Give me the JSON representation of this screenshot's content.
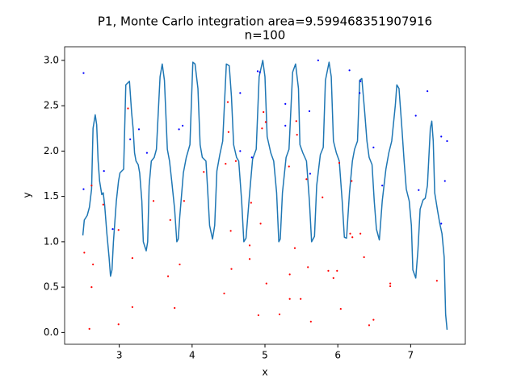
{
  "chart_data": {
    "type": "line",
    "title": "P1, Monte Carlo integration area=9.599468351907916",
    "subtitle": "n=100",
    "x_label": "x",
    "y_label": "y",
    "xlim": [
      2.25,
      7.75
    ],
    "ylim": [
      -0.13,
      3.15
    ],
    "xticks": [
      3,
      4,
      5,
      6,
      7
    ],
    "yticks": [
      {
        "value": 0,
        "label": "0.0"
      },
      {
        "value": 0.5,
        "label": "0.5"
      },
      {
        "value": 1,
        "label": "1.0"
      },
      {
        "value": 1.5,
        "label": "1.5"
      },
      {
        "value": 2,
        "label": "2.0"
      },
      {
        "value": 2.5,
        "label": "2.5"
      },
      {
        "value": 3,
        "label": "3.0"
      }
    ],
    "grid": false,
    "series": [
      {
        "type": "line",
        "color": "#1f77b4",
        "x": [
          2.5,
          2.52,
          2.56,
          2.59,
          2.62,
          2.64,
          2.67,
          2.69,
          2.71,
          2.73,
          2.76,
          2.78,
          2.8,
          2.83,
          2.86,
          2.88,
          2.9,
          2.92,
          2.96,
          2.99,
          3.01,
          3.06,
          3.09,
          3.14,
          3.17,
          3.19,
          3.21,
          3.23,
          3.26,
          3.28,
          3.31,
          3.33,
          3.37,
          3.39,
          3.41,
          3.44,
          3.48,
          3.51,
          3.56,
          3.59,
          3.62,
          3.66,
          3.69,
          3.72,
          3.76,
          3.79,
          3.81,
          3.83,
          3.88,
          3.92,
          3.97,
          4.01,
          4.04,
          4.08,
          4.11,
          4.14,
          4.19,
          4.21,
          4.24,
          4.28,
          4.31,
          4.34,
          4.38,
          4.42,
          4.47,
          4.51,
          4.54,
          4.57,
          4.61,
          4.64,
          4.68,
          4.71,
          4.74,
          4.79,
          4.83,
          4.88,
          4.92,
          4.97,
          5.0,
          5.03,
          5.08,
          5.12,
          5.16,
          5.19,
          5.21,
          5.24,
          5.29,
          5.33,
          5.38,
          5.42,
          5.46,
          5.48,
          5.52,
          5.57,
          5.61,
          5.64,
          5.68,
          5.71,
          5.76,
          5.8,
          5.83,
          5.88,
          5.91,
          5.94,
          5.98,
          6.02,
          6.06,
          6.09,
          6.12,
          6.16,
          6.2,
          6.23,
          6.27,
          6.3,
          6.33,
          6.37,
          6.4,
          6.43,
          6.47,
          6.5,
          6.53,
          6.57,
          6.61,
          6.66,
          6.7,
          6.74,
          6.79,
          6.81,
          6.84,
          6.88,
          6.91,
          6.94,
          6.98,
          7.01,
          7.03,
          7.07,
          7.1,
          7.13,
          7.17,
          7.2,
          7.23,
          7.27,
          7.29,
          7.31,
          7.33,
          7.37,
          7.4,
          7.43,
          7.46,
          7.48,
          7.5
        ],
        "values": [
          1.07,
          1.24,
          1.29,
          1.38,
          1.58,
          2.25,
          2.4,
          2.29,
          1.89,
          1.67,
          1.52,
          1.54,
          1.4,
          1.09,
          0.83,
          0.62,
          0.69,
          1.0,
          1.45,
          1.67,
          1.76,
          1.8,
          2.73,
          2.77,
          2.42,
          2.25,
          1.98,
          1.89,
          1.85,
          1.76,
          1.45,
          1.0,
          0.9,
          1.0,
          1.62,
          1.89,
          1.93,
          2.02,
          2.82,
          2.96,
          2.78,
          2.02,
          1.89,
          1.67,
          1.36,
          1.0,
          1.03,
          1.27,
          1.76,
          1.93,
          2.07,
          2.98,
          2.96,
          2.69,
          2.07,
          1.93,
          1.89,
          1.62,
          1.18,
          1.03,
          1.18,
          1.78,
          1.96,
          2.11,
          2.96,
          2.94,
          2.6,
          2.07,
          1.93,
          1.89,
          1.45,
          1.0,
          1.04,
          1.54,
          1.91,
          2.02,
          2.82,
          3.0,
          2.82,
          2.16,
          1.98,
          1.89,
          1.54,
          1.0,
          1.03,
          1.54,
          1.93,
          2.02,
          2.87,
          2.96,
          2.69,
          2.07,
          1.98,
          1.89,
          1.45,
          1.0,
          1.06,
          1.62,
          1.96,
          2.04,
          2.78,
          2.98,
          2.82,
          2.11,
          1.98,
          1.89,
          1.45,
          1.05,
          1.04,
          1.54,
          1.89,
          2.02,
          2.11,
          2.78,
          2.8,
          2.42,
          2.11,
          1.93,
          1.85,
          1.45,
          1.14,
          1.02,
          1.45,
          1.8,
          1.98,
          2.11,
          2.51,
          2.73,
          2.69,
          2.25,
          1.89,
          1.58,
          1.45,
          1.18,
          0.69,
          0.6,
          0.91,
          1.36,
          1.46,
          1.48,
          1.62,
          2.25,
          2.33,
          2.11,
          1.54,
          1.34,
          1.2,
          1.09,
          0.83,
          0.2,
          0.03
        ]
      },
      {
        "type": "scatter",
        "color": "blue",
        "x": [
          2.51,
          2.51,
          2.79,
          2.91,
          3.15,
          3.27,
          3.38,
          3.82,
          3.87,
          4.66,
          4.66,
          4.82,
          4.9,
          4.93,
          5.28,
          5.28,
          5.61,
          5.62,
          5.73,
          6.16,
          6.31,
          6.3,
          6.49,
          6.61,
          7.07,
          7.11,
          7.23,
          7.42,
          7.42,
          7.47,
          7.5
        ],
        "values": [
          2.86,
          1.58,
          1.78,
          1.14,
          2.13,
          2.24,
          1.98,
          2.24,
          2.28,
          2.0,
          2.64,
          1.93,
          2.88,
          2.87,
          2.52,
          2.28,
          2.44,
          1.75,
          3.0,
          2.89,
          2.77,
          2.64,
          2.04,
          1.62,
          2.39,
          1.57,
          2.66,
          2.16,
          1.2,
          1.67,
          2.11
        ]
      },
      {
        "type": "scatter",
        "color": "red",
        "x": [
          2.52,
          2.62,
          2.62,
          2.64,
          2.59,
          2.78,
          2.99,
          2.99,
          3.12,
          3.18,
          3.18,
          3.47,
          3.67,
          3.7,
          3.76,
          3.83,
          3.89,
          4.16,
          4.44,
          4.46,
          4.49,
          4.5,
          4.53,
          4.54,
          4.6,
          4.79,
          4.79,
          4.81,
          4.91,
          4.94,
          4.96,
          4.98,
          5.01,
          5.02,
          5.2,
          5.33,
          5.34,
          5.34,
          5.41,
          5.43,
          5.44,
          5.49,
          5.57,
          5.59,
          5.63,
          5.79,
          5.87,
          5.94,
          5.99,
          6.02,
          6.04,
          6.17,
          6.19,
          6.2,
          6.31,
          6.36,
          6.43,
          6.49,
          6.72,
          6.72,
          7.36
        ],
        "values": [
          0.88,
          1.62,
          0.5,
          0.75,
          0.04,
          1.41,
          1.13,
          0.09,
          2.47,
          0.82,
          0.28,
          1.45,
          0.62,
          1.24,
          0.27,
          0.75,
          1.45,
          1.77,
          0.43,
          1.86,
          2.54,
          2.21,
          1.12,
          0.7,
          1.89,
          0.81,
          0.96,
          1.43,
          0.19,
          1.2,
          2.25,
          2.43,
          2.32,
          0.54,
          0.2,
          1.83,
          0.64,
          0.37,
          0.93,
          2.33,
          2.18,
          0.37,
          1.69,
          0.72,
          0.12,
          1.49,
          0.68,
          0.6,
          0.68,
          1.87,
          0.26,
          1.09,
          1.67,
          1.05,
          1.09,
          0.83,
          0.08,
          0.14,
          0.54,
          0.51,
          0.57
        ]
      }
    ]
  }
}
